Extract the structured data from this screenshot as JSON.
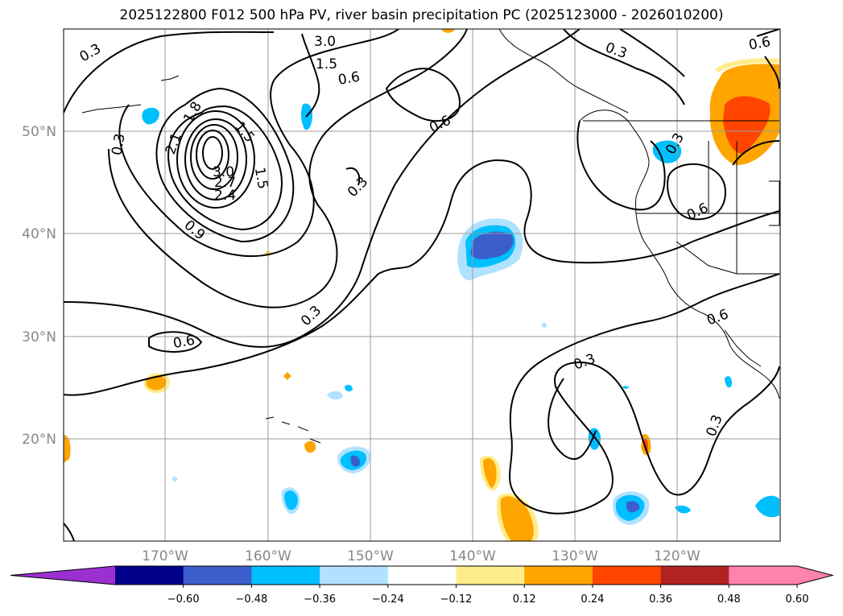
{
  "title": "2025122800 F012 500 hPa PV, river basin precipitation PC (2025123000 - 2026010200)",
  "map": {
    "lat_labels": [
      "50°N",
      "40°N",
      "30°N",
      "20°N"
    ],
    "lon_labels": [
      "170°W",
      "160°W",
      "150°W",
      "140°W",
      "130°W",
      "120°W"
    ],
    "contour_labels": [
      "0.3",
      "0.3",
      "0.3",
      "0.3",
      "0.3",
      "0.3",
      "0.3",
      "0.3",
      "0.6",
      "0.6",
      "0.6",
      "0.6",
      "0.6",
      "0.6",
      "0.9",
      "2.4",
      "2.7",
      "3.0",
      "3.0",
      "2.1",
      "1.8",
      "1.5",
      "1.5",
      "1.5"
    ]
  },
  "colorbar": {
    "ticks": [
      "−0.60",
      "−0.48",
      "−0.36",
      "−0.24",
      "−0.12",
      "0.12",
      "0.24",
      "0.36",
      "0.48",
      "0.60"
    ],
    "colors": {
      "under": "#9b30d0",
      "bins": [
        "#00008b",
        "#3a5fcd",
        "#00bfff",
        "#b0e2ff",
        "#ffffff",
        "#ffec8b",
        "#ffa500",
        "#ff4500",
        "#b22222",
        "#ff82ab"
      ]
    }
  }
}
